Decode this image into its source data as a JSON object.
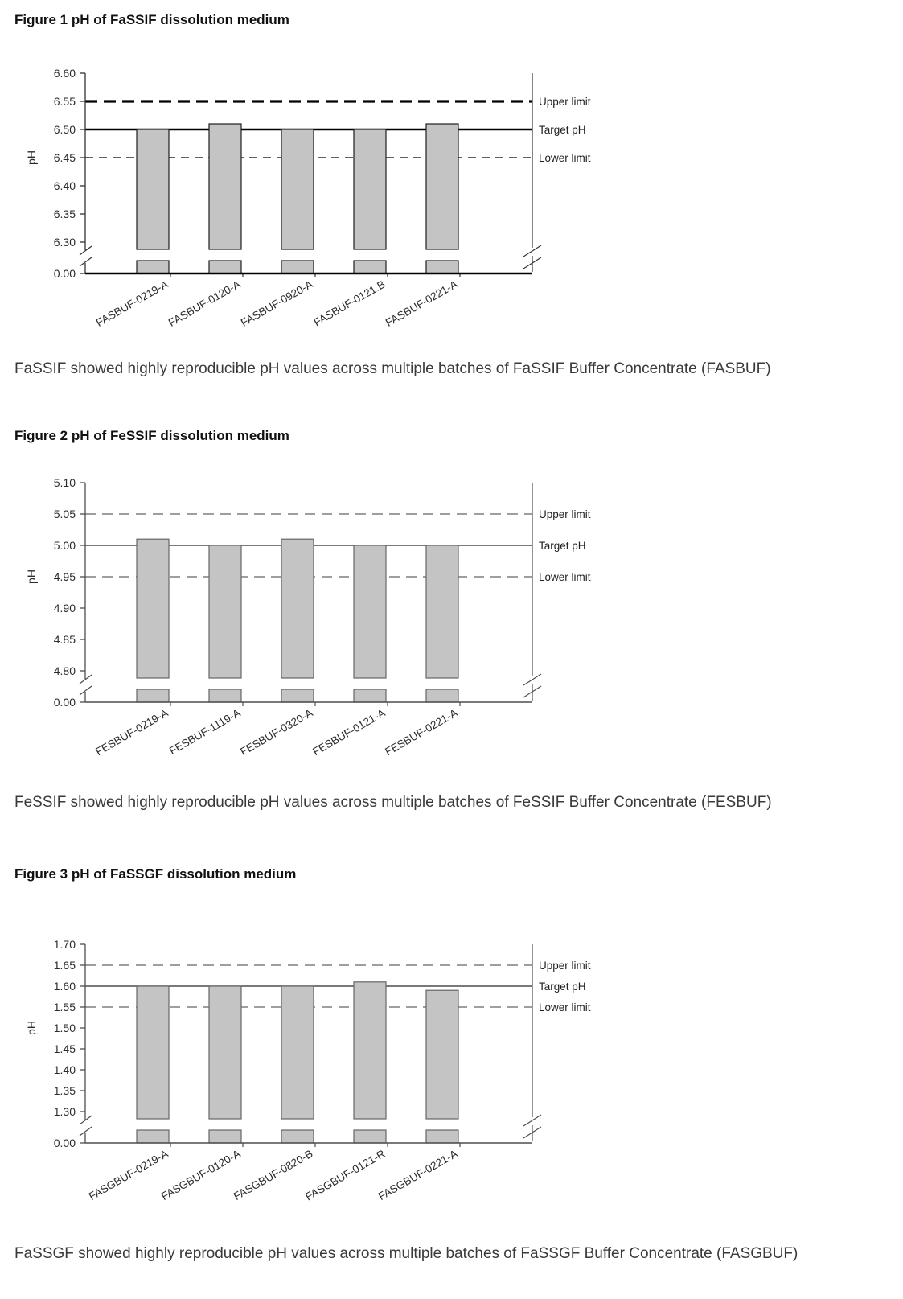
{
  "figures": [
    {
      "title": "Figure 1 pH of FaSSIF dissolution medium",
      "caption": "FaSSIF showed highly reproducible pH values across multiple batches of FaSSIF Buffer Concentrate (FASBUF)"
    },
    {
      "title": "Figure 2 pH of FeSSIF dissolution medium",
      "caption": "FeSSIF showed highly reproducible pH values across multiple batches of FeSSIF Buffer Concentrate (FESBUF)"
    },
    {
      "title": "Figure 3 pH of FaSSGF dissolution medium",
      "caption": "FaSSGF showed highly reproducible pH values across multiple batches of FaSSGF Buffer Concentrate (FASGBUF)"
    }
  ],
  "chart_data": [
    {
      "type": "bar",
      "title": "Figure 1 pH of FaSSIF dissolution medium",
      "categories": [
        "FASBUF-0219-A",
        "FASBUF-0120-A",
        "FASBUF-0920-A",
        "FASBUF-0121.B",
        "FASBUF-0221-A"
      ],
      "values": [
        6.5,
        6.51,
        6.5,
        6.5,
        6.51
      ],
      "ylabel": "pH",
      "yticks": [
        "6.60",
        "6.55",
        "6.50",
        "6.45",
        "6.40",
        "6.35",
        "6.30"
      ],
      "zero_label": "0.00",
      "axis_break": true,
      "ylim_display": [
        6.3,
        6.6
      ],
      "grid": false,
      "legend_position": "right",
      "reference_lines": [
        {
          "value": 6.55,
          "label": "Upper limit",
          "style": "dashed"
        },
        {
          "value": 6.5,
          "label": "Target pH",
          "style": "solid"
        },
        {
          "value": 6.45,
          "label": "Lower limit",
          "style": "dashed-thin"
        }
      ],
      "line_weight": "bold",
      "colors": {
        "bar_fill": "#c4c4c4",
        "bar_border": "#1f1f1f",
        "limit_lines": "#000000",
        "target_line": "#000000",
        "axis": "#333333",
        "text": "#2b2b2b"
      }
    },
    {
      "type": "bar",
      "title": "Figure 2 pH of FeSSIF dissolution medium",
      "categories": [
        "FESBUF-0219-A",
        "FESBUF-1119-A",
        "FESBUF-0320-A",
        "FESBUF-0121-A",
        "FESBUF-0221-A"
      ],
      "values": [
        5.01,
        5.0,
        5.01,
        5.0,
        5.0
      ],
      "ylabel": "pH",
      "yticks": [
        "5.10",
        "5.05",
        "5.00",
        "4.95",
        "4.90",
        "4.85",
        "4.80"
      ],
      "zero_label": "0.00",
      "axis_break": true,
      "ylim_display": [
        4.8,
        5.1
      ],
      "grid": false,
      "legend_position": "right",
      "reference_lines": [
        {
          "value": 5.05,
          "label": "Upper limit",
          "style": "dashed"
        },
        {
          "value": 5.0,
          "label": "Target pH",
          "style": "solid"
        },
        {
          "value": 4.95,
          "label": "Lower limit",
          "style": "dashed-thin"
        }
      ],
      "line_weight": "light",
      "colors": {
        "bar_fill": "#c4c4c4",
        "bar_border": "#666666",
        "limit_lines": "#7f7f7f",
        "target_line": "#4d4d4d",
        "axis": "#4d4d4d",
        "text": "#2b2b2b"
      }
    },
    {
      "type": "bar",
      "title": "Figure 3 pH of FaSSGF dissolution medium",
      "categories": [
        "FASGBUF-0219-A",
        "FASGBUF-0120-A",
        "FASGBUF-0820-B",
        "FASGBUF-0121-R",
        "FASGBUF-0221-A"
      ],
      "values": [
        1.6,
        1.6,
        1.6,
        1.61,
        1.59
      ],
      "ylabel": "pH",
      "yticks": [
        "1.70",
        "1.65",
        "1.60",
        "1.55",
        "1.50",
        "1.45",
        "1.40",
        "1.35",
        "1.30"
      ],
      "zero_label": "0.00",
      "axis_break": true,
      "ylim_display": [
        1.3,
        1.7
      ],
      "grid": false,
      "legend_position": "right",
      "reference_lines": [
        {
          "value": 1.65,
          "label": "Upper limit",
          "style": "dashed"
        },
        {
          "value": 1.6,
          "label": "Target pH",
          "style": "solid"
        },
        {
          "value": 1.55,
          "label": "Lower limit",
          "style": "dashed-thin"
        }
      ],
      "line_weight": "light",
      "colors": {
        "bar_fill": "#c4c4c4",
        "bar_border": "#666666",
        "limit_lines": "#7f7f7f",
        "target_line": "#4d4d4d",
        "axis": "#4d4d4d",
        "text": "#2b2b2b"
      }
    }
  ]
}
